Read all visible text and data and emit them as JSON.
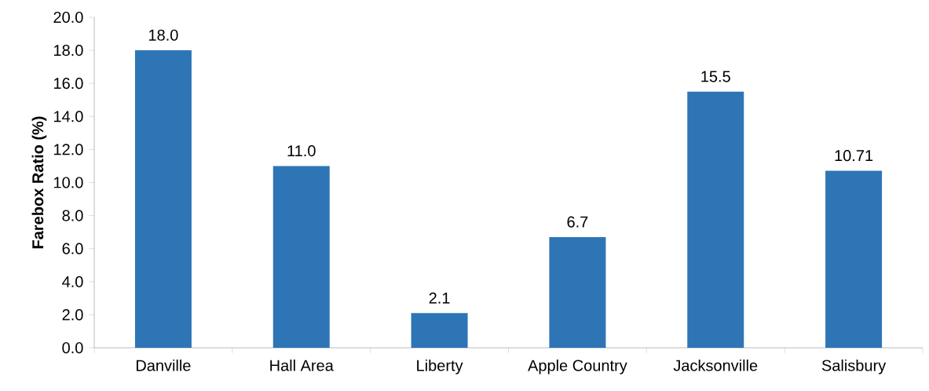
{
  "chart_data": {
    "type": "bar",
    "ylabel": "Farebox Ratio (%)",
    "categories": [
      "Danville",
      "Hall Area",
      "Liberty",
      "Apple Country",
      "Jacksonville",
      "Salisbury"
    ],
    "values": [
      18.0,
      11.0,
      2.1,
      6.7,
      15.5,
      10.71
    ],
    "value_labels": [
      "18.0",
      "11.0",
      "2.1",
      "6.7",
      "15.5",
      "10.71"
    ],
    "color": "#2e75b6",
    "ylim": [
      0,
      20
    ],
    "yticks": [
      {
        "value": 0,
        "label": "0.0"
      },
      {
        "value": 2,
        "label": "2.0"
      },
      {
        "value": 4,
        "label": "4.0"
      },
      {
        "value": 6,
        "label": "6.0"
      },
      {
        "value": 8,
        "label": "8.0"
      },
      {
        "value": 10,
        "label": "10.0"
      },
      {
        "value": 12,
        "label": "12.0"
      },
      {
        "value": 14,
        "label": "14.0"
      },
      {
        "value": 16,
        "label": "16.0"
      },
      {
        "value": 18,
        "label": "18.0"
      },
      {
        "value": 20,
        "label": "20.0"
      }
    ],
    "grid": false
  }
}
